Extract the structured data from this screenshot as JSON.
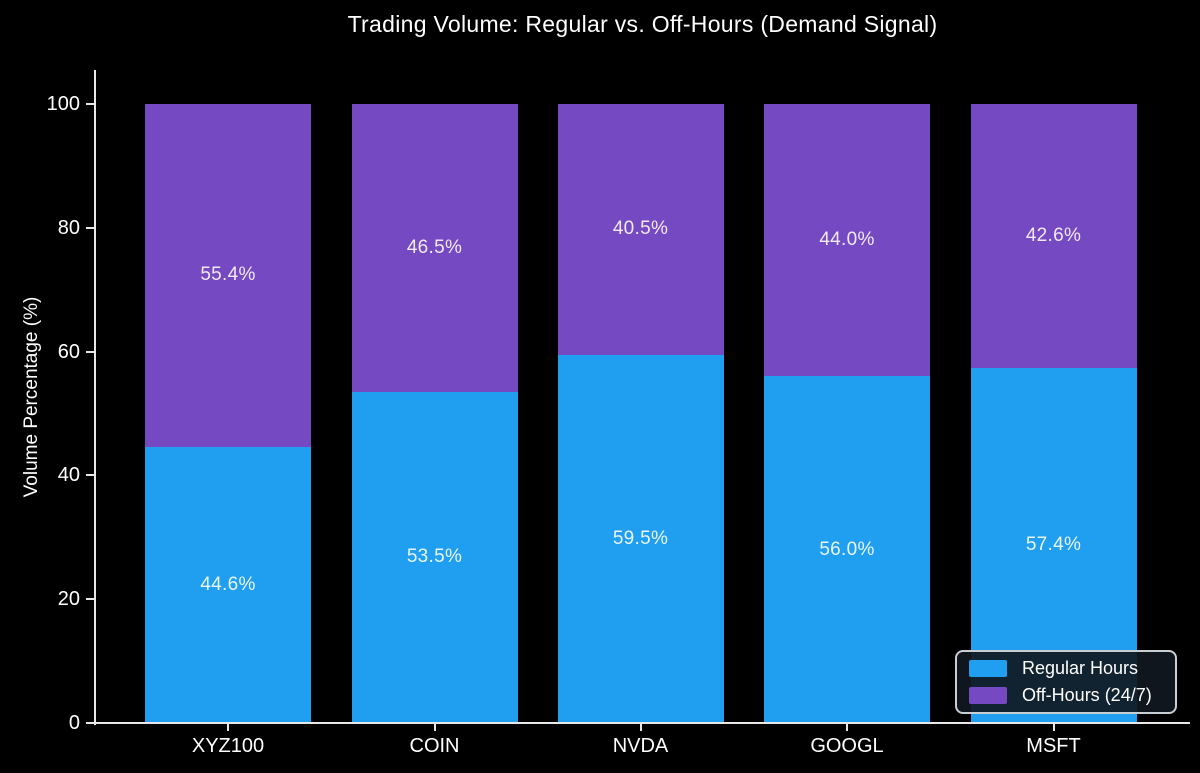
{
  "figure": {
    "background": "#000000",
    "text_color": "#ffffff"
  },
  "chart_data": {
    "type": "bar",
    "stacked": true,
    "title": "Trading Volume: Regular vs. Off-Hours (Demand Signal)",
    "xlabel": "",
    "ylabel": "Volume Percentage (%)",
    "categories": [
      "XYZ100",
      "COIN",
      "NVDA",
      "GOOGL",
      "MSFT"
    ],
    "series": [
      {
        "name": "Regular Hours",
        "color": "#209EEF",
        "label_color": "#EAF6FD",
        "values": [
          44.6,
          53.5,
          59.5,
          56.0,
          57.4
        ],
        "labels": [
          "44.6%",
          "53.5%",
          "59.5%",
          "56.0%",
          "57.4%"
        ]
      },
      {
        "name": "Off-Hours (24/7)",
        "color": "#7549C1",
        "label_color": "#F2EAF6",
        "values": [
          55.4,
          46.5,
          40.5,
          44.0,
          42.6
        ],
        "labels": [
          "55.4%",
          "46.5%",
          "40.5%",
          "44.0%",
          "42.6%"
        ]
      }
    ],
    "ylim": [
      0,
      105.5
    ],
    "yticks": [
      0,
      20,
      40,
      60,
      80,
      100
    ],
    "grid": false,
    "legend_position": "lower right"
  }
}
